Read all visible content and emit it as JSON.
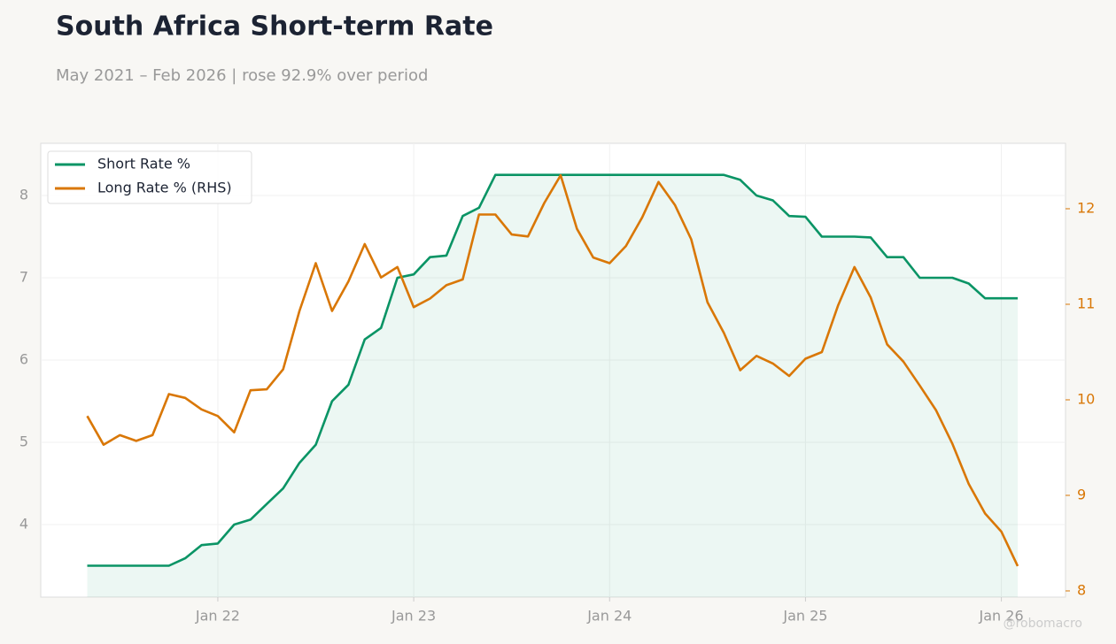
{
  "chart_data": {
    "type": "line",
    "title": "South Africa Short-term Rate",
    "subtitle": "May 2021 – Feb 2026 | rose 92.9% over period",
    "watermark": "@robomacro",
    "x": [
      "2021-05",
      "2021-06",
      "2021-07",
      "2021-08",
      "2021-09",
      "2021-10",
      "2021-11",
      "2021-12",
      "2022-01",
      "2022-02",
      "2022-03",
      "2022-04",
      "2022-05",
      "2022-06",
      "2022-07",
      "2022-08",
      "2022-09",
      "2022-10",
      "2022-11",
      "2022-12",
      "2023-01",
      "2023-02",
      "2023-03",
      "2023-04",
      "2023-05",
      "2023-06",
      "2023-07",
      "2023-08",
      "2023-09",
      "2023-10",
      "2023-11",
      "2023-12",
      "2024-01",
      "2024-02",
      "2024-03",
      "2024-04",
      "2024-05",
      "2024-06",
      "2024-07",
      "2024-08",
      "2024-09",
      "2024-10",
      "2024-11",
      "2024-12",
      "2025-01",
      "2025-02",
      "2025-03",
      "2025-04",
      "2025-05",
      "2025-06",
      "2025-07",
      "2025-08",
      "2025-09",
      "2025-10",
      "2025-11",
      "2025-12",
      "2026-01",
      "2026-02"
    ],
    "series": [
      {
        "name": "Short Rate %",
        "color": "#0a9465",
        "axis": "y",
        "area": true,
        "values": [
          3.5,
          3.5,
          3.5,
          3.5,
          3.5,
          3.5,
          3.59,
          3.75,
          3.77,
          4.0,
          4.06,
          4.25,
          4.44,
          4.75,
          4.97,
          5.5,
          5.7,
          6.25,
          6.39,
          7.0,
          7.04,
          7.25,
          7.27,
          7.75,
          7.85,
          8.25,
          8.25,
          8.25,
          8.25,
          8.25,
          8.25,
          8.25,
          8.25,
          8.25,
          8.25,
          8.25,
          8.25,
          8.25,
          8.25,
          8.25,
          8.19,
          8.0,
          7.94,
          7.75,
          7.74,
          7.5,
          7.5,
          7.5,
          7.49,
          7.25,
          7.25,
          7.0,
          7.0,
          7.0,
          6.93,
          6.75,
          6.75,
          6.75
        ]
      },
      {
        "name": "Long Rate % (RHS)",
        "color": "#d97706",
        "axis": "y2",
        "values": [
          9.83,
          9.53,
          9.63,
          9.57,
          9.63,
          10.06,
          10.02,
          9.9,
          9.83,
          9.66,
          10.1,
          10.11,
          10.32,
          10.93,
          11.43,
          10.93,
          11.24,
          11.63,
          11.28,
          11.39,
          10.97,
          11.06,
          11.2,
          11.26,
          11.94,
          11.94,
          11.73,
          11.71,
          12.06,
          12.35,
          11.79,
          11.49,
          11.43,
          11.61,
          11.91,
          12.28,
          12.04,
          11.68,
          11.02,
          10.7,
          10.31,
          10.46,
          10.38,
          10.25,
          10.43,
          10.5,
          10.99,
          11.39,
          11.07,
          10.58,
          10.4,
          10.15,
          9.89,
          9.54,
          9.12,
          8.81,
          8.62,
          8.26
        ]
      }
    ],
    "xticks": [
      {
        "value": "2022-01",
        "label": "Jan 22"
      },
      {
        "value": "2023-01",
        "label": "Jan 23"
      },
      {
        "value": "2024-01",
        "label": "Jan 24"
      },
      {
        "value": "2025-01",
        "label": "Jan 25"
      },
      {
        "value": "2026-01",
        "label": "Jan 26"
      }
    ],
    "ylim": [
      3.118,
      8.634
    ],
    "yticks": [
      4,
      5,
      6,
      7,
      8
    ],
    "y2lim": [
      7.935,
      12.685
    ],
    "y2ticks": [
      8,
      9,
      10,
      11,
      12
    ],
    "grid": true,
    "legend": "upper-left"
  }
}
